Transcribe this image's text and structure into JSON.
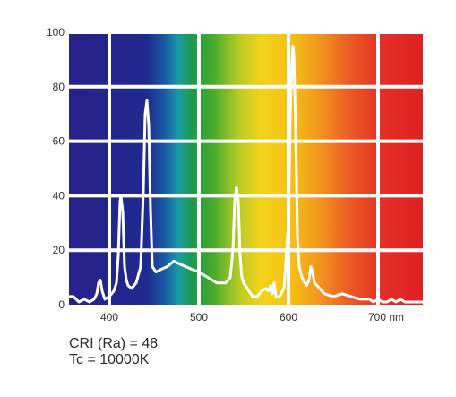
{
  "chart_data": {
    "type": "line",
    "title": "",
    "xlabel": "",
    "ylabel": "",
    "xlim": [
      355,
      750
    ],
    "ylim": [
      0,
      100
    ],
    "x_ticks": [
      {
        "value": 400,
        "label": "400"
      },
      {
        "value": 500,
        "label": "500"
      },
      {
        "value": 600,
        "label": "600"
      },
      {
        "value": 700,
        "label": "700 nm"
      }
    ],
    "y_ticks": [
      0,
      20,
      40,
      60,
      80,
      100
    ],
    "grid": true,
    "background": "visible spectrum gradient (violet to red)",
    "series": [
      {
        "color": "#ffffff",
        "x": [
          355,
          360,
          366,
          372,
          378,
          383,
          386,
          388,
          390,
          392,
          395,
          400,
          405,
          408,
          410,
          412,
          413,
          415,
          417,
          419,
          421,
          425,
          430,
          435,
          438,
          440,
          442,
          444,
          446,
          448,
          452,
          458,
          465,
          472,
          478,
          485,
          492,
          500,
          510,
          520,
          530,
          535,
          538,
          540,
          542,
          544,
          546,
          548,
          550,
          556,
          560,
          565,
          570,
          575,
          578,
          580,
          582,
          584,
          586,
          590,
          595,
          600,
          602,
          604,
          605,
          606,
          608,
          610,
          612,
          615,
          620,
          623,
          625,
          627,
          629,
          632,
          640,
          650,
          660,
          670,
          680,
          690,
          695,
          700,
          705,
          710,
          715,
          720,
          725,
          730,
          740,
          750
        ],
        "y": [
          3,
          3,
          1,
          2,
          1,
          2,
          4,
          8,
          9,
          5,
          2,
          3,
          5,
          8,
          18,
          38,
          40,
          34,
          14,
          9,
          7,
          6,
          8,
          14,
          42,
          70,
          75,
          66,
          35,
          14,
          12,
          13,
          14,
          16,
          15,
          14,
          13,
          12,
          10,
          8,
          8,
          10,
          20,
          38,
          43,
          38,
          18,
          10,
          8,
          5,
          3,
          3,
          5,
          6,
          5,
          7,
          4,
          8,
          3,
          3,
          6,
          30,
          70,
          90,
          95,
          92,
          65,
          25,
          14,
          10,
          7,
          9,
          14,
          12,
          8,
          7,
          4,
          3,
          4,
          3,
          2,
          2,
          1,
          2,
          1,
          1,
          2,
          1,
          2,
          1,
          1,
          1
        ]
      }
    ],
    "annotations": [
      "CRI (Ra) = 48",
      "Tc = 10000K"
    ]
  },
  "info": {
    "cri": "CRI (Ra) = 48",
    "tc": "Tc = 10000K"
  }
}
